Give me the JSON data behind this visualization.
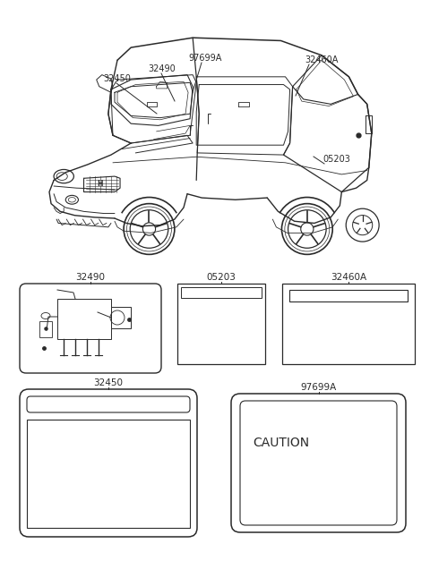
{
  "bg_color": "#ffffff",
  "line_color": "#2a2a2a",
  "text_color": "#2a2a2a",
  "car_label_32450": "32450",
  "car_label_32490": "32490",
  "car_label_97699A": "97699A",
  "car_label_32460A": "32460A",
  "car_label_05203": "05203",
  "label_32490": "32490",
  "label_05203": "05203",
  "label_32460A": "32460A",
  "label_32450": "32450",
  "label_97699A": "97699A",
  "caution_text": "CAUTION",
  "font_size_label": 7.5,
  "font_size_caution": 10
}
